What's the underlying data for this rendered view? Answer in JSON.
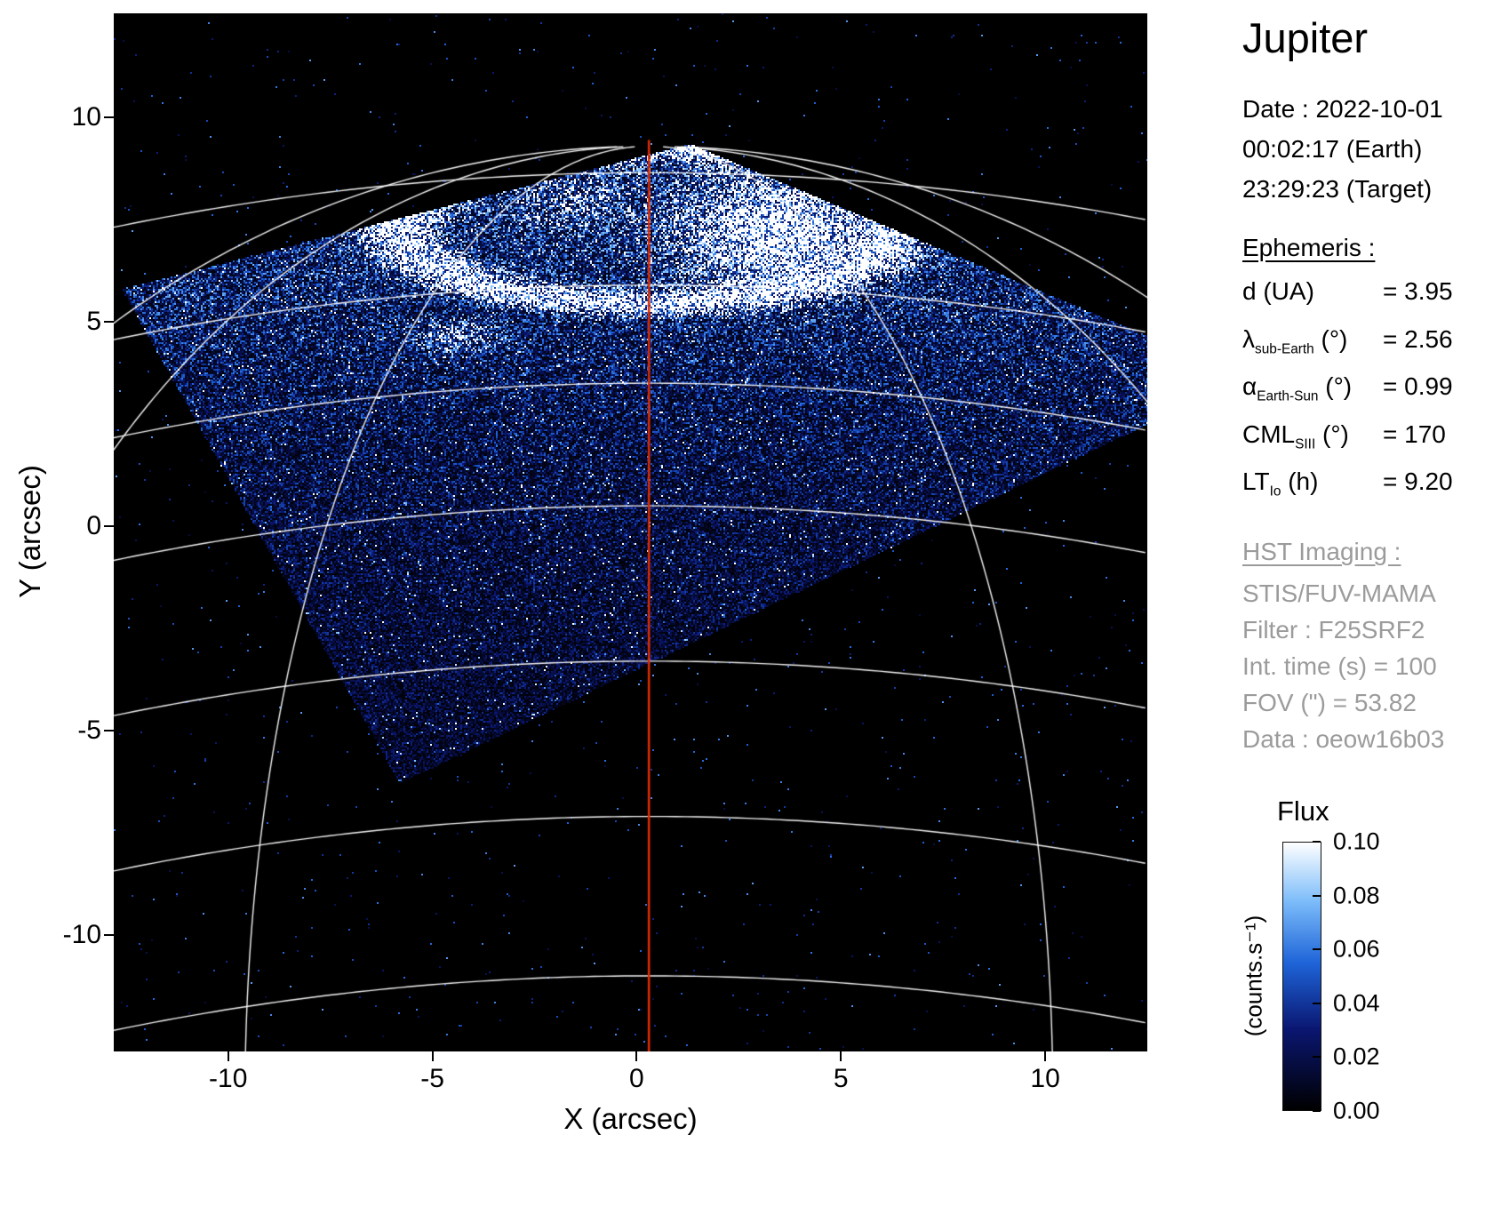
{
  "figure": {
    "title": "Jupiter",
    "observation": {
      "date_line": "Date : 2022-10-01",
      "earth_time": "00:02:17 (Earth)",
      "target_time": "23:29:23 (Target)"
    },
    "ephemeris": {
      "heading": "Ephemeris :",
      "rows": [
        {
          "name": "d",
          "sub": "",
          "unit": "(UA)",
          "value": "= 3.95"
        },
        {
          "name": "λ",
          "sub": "sub-Earth",
          "unit": "(°)",
          "value": "= 2.56"
        },
        {
          "name": "α",
          "sub": "Earth-Sun",
          "unit": "(°)",
          "value": "= 0.99"
        },
        {
          "name": "CML",
          "sub": "SIII",
          "unit": "(°)",
          "value": "= 170"
        },
        {
          "name": "LT",
          "sub": "Io",
          "unit": "(h)",
          "value": "= 9.20"
        }
      ]
    },
    "hst": {
      "heading": "HST Imaging :",
      "color": "#9b9b9b",
      "lines": [
        "STIS/FUV-MAMA",
        "Filter : F25SRF2",
        "Int. time (s) = 100",
        "FOV (\") = 53.82",
        "Data : oeow16b03"
      ]
    }
  },
  "chart_data": {
    "type": "heatmap",
    "title": "Jupiter",
    "xlabel": "X (arcsec)",
    "ylabel": "Y (arcsec)",
    "xlim": [
      -12.8,
      12.5
    ],
    "ylim": [
      -12.85,
      12.55
    ],
    "xticks": [
      -10,
      -5,
      0,
      5,
      10
    ],
    "yticks": [
      10,
      5,
      0,
      -5,
      -10
    ],
    "grid": false,
    "background": "#000000",
    "colorbar": {
      "title": "Flux",
      "unit": "(counts.s⁻¹)",
      "ticks": [
        "0.10",
        "0.08",
        "0.06",
        "0.04",
        "0.02",
        "0.00"
      ],
      "vmin": 0.0,
      "vmax": 0.1
    },
    "colormap": [
      {
        "pos": 0.0,
        "color": "#000000"
      },
      {
        "pos": 0.3,
        "color": "#0a1670"
      },
      {
        "pos": 0.55,
        "color": "#1e64d8"
      },
      {
        "pos": 0.78,
        "color": "#7cbcfa"
      },
      {
        "pos": 1.0,
        "color": "#ffffff"
      }
    ],
    "cml_line": {
      "x": 0.3,
      "top": 9.45,
      "color": "#d92b00"
    },
    "fov_polygon": [
      [
        -12.6,
        5.8
      ],
      [
        1.3,
        9.35
      ],
      [
        12.5,
        4.65
      ],
      [
        12.5,
        2.5
      ],
      [
        -5.8,
        -6.3
      ]
    ],
    "aurora": {
      "center": [
        0.2,
        7.4
      ],
      "a": 6.1,
      "b": 1.95
    },
    "graticule": {
      "color": "#ffffff",
      "lat_y": [
        8.65,
        5.9,
        3.5,
        0.5,
        -3.3,
        -7.1,
        -11.0
      ],
      "arc_radius": 65,
      "meridian_deltas": [
        -75,
        -50,
        -25,
        25,
        50,
        75
      ],
      "planet_center": [
        0.3,
        -14.1
      ],
      "planet_radius": 23.4
    }
  }
}
